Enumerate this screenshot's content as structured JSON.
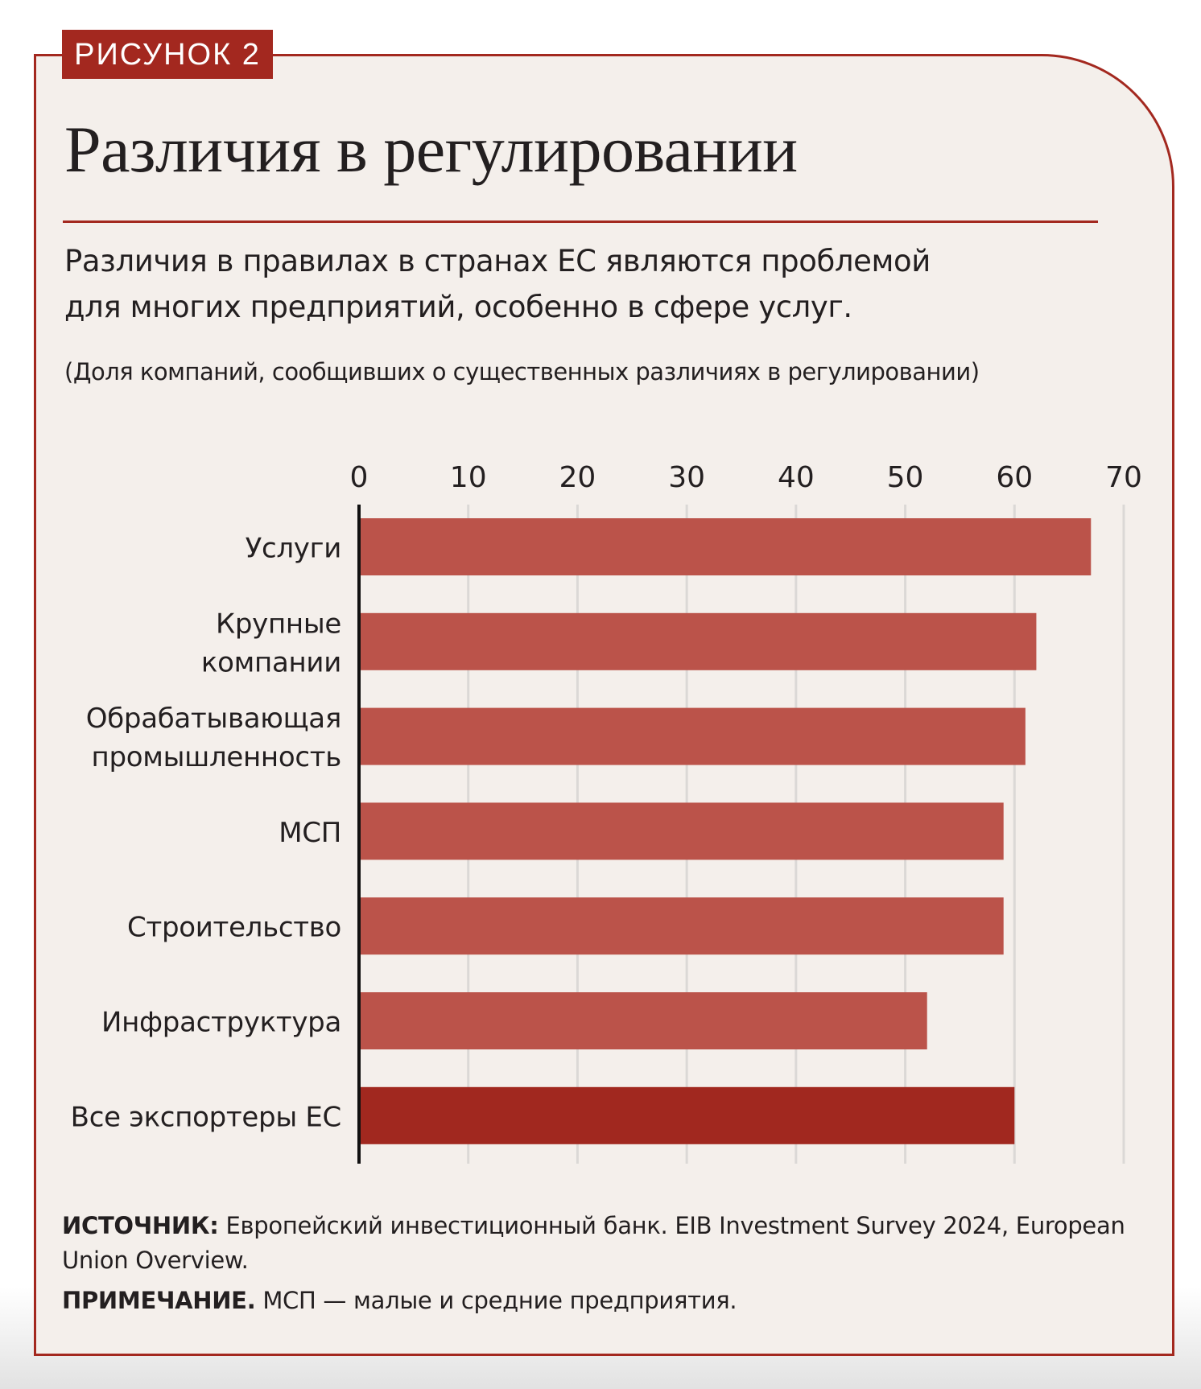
{
  "badge": "РИСУНОК 2",
  "title": "Различия в регулировании",
  "subtitle": [
    "Различия в правилах в странах ЕС являются проблемой",
    "для многих предприятий, особенно в сфере услуг."
  ],
  "note": "(Доля компаний, сообщивших о существенных различиях в регулировании)",
  "colors": {
    "accent": "#a3281f",
    "bar": "#bb534a",
    "bar_highlight": "#a1281f",
    "background": "#f4efeb",
    "grid": "#dbd8d6"
  },
  "chart_data": {
    "type": "bar",
    "orientation": "horizontal",
    "title": "Различия в регулировании",
    "xlabel": "",
    "ylabel": "",
    "xlim": [
      0,
      70
    ],
    "x_ticks": [
      0,
      10,
      20,
      30,
      40,
      50,
      60,
      70
    ],
    "x_tick_labels": [
      "0",
      "10",
      "20",
      "30",
      "40",
      "50",
      "60",
      "70"
    ],
    "x_axis_position": "top",
    "grid": true,
    "categories": [
      [
        "Услуги"
      ],
      [
        "Крупные",
        "компании"
      ],
      [
        "Обрабатывающая",
        "промышленность"
      ],
      [
        "МСП"
      ],
      [
        "Строительство"
      ],
      [
        "Инфраструктура"
      ],
      [
        "Все экспортеры ЕС"
      ]
    ],
    "values": [
      67,
      62,
      61,
      59,
      59,
      52,
      60
    ],
    "highlighted": [
      false,
      false,
      false,
      false,
      false,
      false,
      true
    ]
  },
  "footer": {
    "source_label": "ИСТОЧНИК:",
    "source_text": " Европейский инвестиционный банк. EIB Investment Survey 2024, European Union Overview.",
    "note_label": "ПРИМЕЧАНИЕ.",
    "note_text": " МСП — малые и средние предприятия."
  }
}
